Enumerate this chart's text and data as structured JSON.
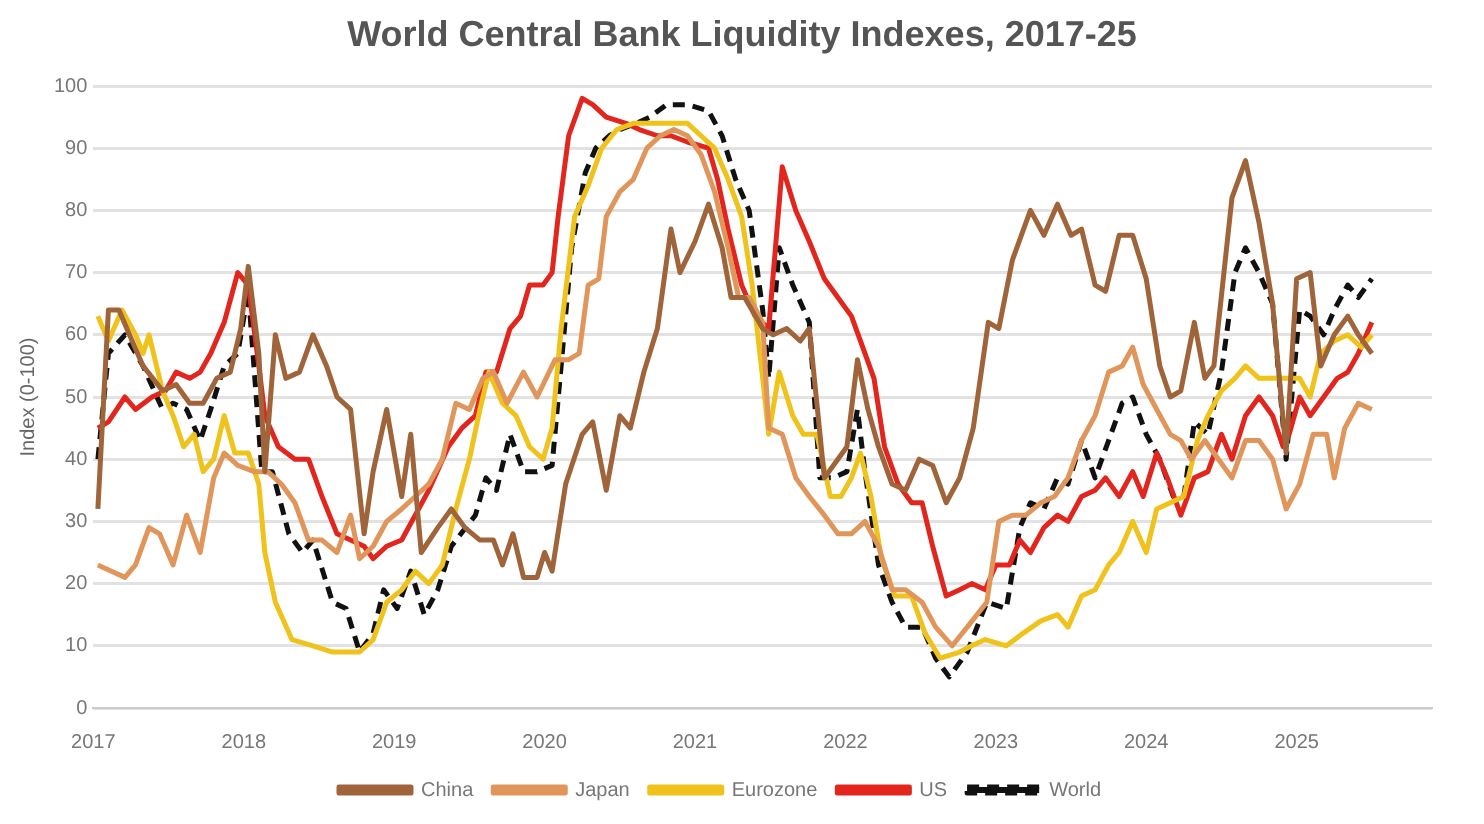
{
  "chart_data": {
    "type": "line",
    "title": "World Central Bank Liquidity Indexes, 2017-25",
    "ylabel": "Index (0-100)",
    "xlim": [
      2017,
      2025.9
    ],
    "xticks": [
      2017,
      2018,
      2019,
      2020,
      2021,
      2022,
      2023,
      2024,
      2025
    ],
    "ylim": [
      0,
      100
    ],
    "yticks": [
      0,
      10,
      20,
      30,
      40,
      50,
      60,
      70,
      80,
      90,
      100
    ],
    "grid": "y",
    "legend": "bottom",
    "series": [
      {
        "name": "China",
        "color": "#a0643a",
        "x": [
          2017.03,
          2017.1,
          2017.17,
          2017.24,
          2017.33,
          2017.46,
          2017.55,
          2017.64,
          2017.73,
          2017.82,
          2017.91,
          2017.98,
          2018.03,
          2018.1,
          2018.14,
          2018.21,
          2018.28,
          2018.37,
          2018.46,
          2018.55,
          2018.62,
          2018.71,
          2018.8,
          2018.86,
          2018.95,
          2019.05,
          2019.11,
          2019.18,
          2019.29,
          2019.38,
          2019.47,
          2019.57,
          2019.66,
          2019.72,
          2019.79,
          2019.86,
          2019.95,
          2020.0,
          2020.05,
          2020.14,
          2020.25,
          2020.32,
          2020.41,
          2020.5,
          2020.57,
          2020.66,
          2020.75,
          2020.84,
          2020.9,
          2021.0,
          2021.09,
          2021.18,
          2021.24,
          2021.33,
          2021.45,
          2021.52,
          2021.61,
          2021.7,
          2021.76,
          2021.86,
          2021.95,
          2022.01,
          2022.08,
          2022.15,
          2022.22,
          2022.31,
          2022.4,
          2022.49,
          2022.58,
          2022.67,
          2022.76,
          2022.85,
          2022.95,
          2023.02,
          2023.11,
          2023.23,
          2023.32,
          2023.41,
          2023.5,
          2023.57,
          2023.66,
          2023.73,
          2023.82,
          2023.91,
          2024.0,
          2024.09,
          2024.16,
          2024.23,
          2024.32,
          2024.39,
          2024.45,
          2024.57,
          2024.66,
          2024.75,
          2024.84,
          2024.93,
          2025.0,
          2025.09,
          2025.16,
          2025.25,
          2025.34,
          2025.41,
          2025.5
        ],
        "values": [
          32,
          64,
          64,
          60,
          55,
          51,
          52,
          49,
          49,
          53,
          54,
          61,
          71,
          57,
          38,
          60,
          53,
          54,
          60,
          55,
          50,
          48,
          28,
          38,
          48,
          34,
          44,
          25,
          29,
          32,
          29,
          27,
          27,
          23,
          28,
          21,
          21,
          25,
          22,
          36,
          44,
          46,
          35,
          47,
          45,
          54,
          61,
          77,
          70,
          75,
          81,
          74,
          66,
          66,
          61,
          60,
          61,
          59,
          61,
          37,
          40,
          42,
          56,
          48,
          42,
          36,
          35,
          40,
          39,
          33,
          37,
          45,
          62,
          61,
          72,
          80,
          76,
          81,
          76,
          77,
          68,
          67,
          76,
          76,
          69,
          55,
          50,
          51,
          62,
          53,
          55,
          82,
          88,
          78,
          65,
          41,
          69,
          70,
          55,
          60,
          63,
          60,
          57
        ]
      },
      {
        "name": "Japan",
        "color": "#e0965a",
        "x": [
          2017.03,
          2017.12,
          2017.21,
          2017.28,
          2017.37,
          2017.44,
          2017.53,
          2017.62,
          2017.71,
          2017.8,
          2017.87,
          2017.96,
          2018.07,
          2018.16,
          2018.25,
          2018.34,
          2018.43,
          2018.52,
          2018.62,
          2018.71,
          2018.77,
          2018.86,
          2018.95,
          2019.05,
          2019.14,
          2019.23,
          2019.32,
          2019.41,
          2019.5,
          2019.59,
          2019.66,
          2019.75,
          2019.86,
          2019.95,
          2020.07,
          2020.16,
          2020.23,
          2020.29,
          2020.36,
          2020.41,
          2020.5,
          2020.59,
          2020.68,
          2020.77,
          2020.86,
          2020.95,
          2021.04,
          2021.13,
          2021.22,
          2021.29,
          2021.36,
          2021.45,
          2021.49,
          2021.58,
          2021.67,
          2021.76,
          2021.86,
          2021.95,
          2022.04,
          2022.13,
          2022.22,
          2022.31,
          2022.4,
          2022.51,
          2022.6,
          2022.71,
          2022.81,
          2022.94,
          2023.02,
          2023.11,
          2023.2,
          2023.3,
          2023.39,
          2023.48,
          2023.57,
          2023.66,
          2023.75,
          2023.84,
          2023.91,
          2023.98,
          2024.07,
          2024.16,
          2024.23,
          2024.3,
          2024.39,
          2024.48,
          2024.57,
          2024.66,
          2024.75,
          2024.84,
          2024.93,
          2025.02,
          2025.11,
          2025.2,
          2025.25,
          2025.32,
          2025.41,
          2025.5
        ],
        "values": [
          23,
          22,
          21,
          23,
          29,
          28,
          23,
          31,
          25,
          37,
          41,
          39,
          38,
          38,
          36,
          33,
          27,
          27,
          25,
          31,
          24,
          26,
          30,
          32,
          34,
          36,
          40,
          49,
          48,
          53,
          54,
          49,
          54,
          50,
          56,
          56,
          57,
          68,
          69,
          79,
          83,
          85,
          90,
          92,
          93,
          92,
          89,
          83,
          74,
          66,
          66,
          62,
          45,
          44,
          37,
          34,
          31,
          28,
          28,
          30,
          26,
          19,
          19,
          17,
          13,
          10,
          13,
          17,
          30,
          31,
          31,
          33,
          34,
          37,
          43,
          47,
          54,
          55,
          58,
          52,
          48,
          44,
          43,
          40,
          43,
          40,
          37,
          43,
          43,
          40,
          32,
          36,
          44,
          44,
          37,
          45,
          49,
          48
        ]
      },
      {
        "name": "Eurozone",
        "color": "#efc21c",
        "x": [
          2017.03,
          2017.1,
          2017.19,
          2017.28,
          2017.33,
          2017.37,
          2017.46,
          2017.53,
          2017.6,
          2017.67,
          2017.73,
          2017.8,
          2017.87,
          2017.94,
          2018.03,
          2018.1,
          2018.14,
          2018.21,
          2018.32,
          2018.46,
          2018.59,
          2018.77,
          2018.86,
          2018.95,
          2019.05,
          2019.14,
          2019.23,
          2019.32,
          2019.41,
          2019.5,
          2019.57,
          2019.63,
          2019.72,
          2019.81,
          2019.9,
          2019.99,
          2020.05,
          2020.11,
          2020.2,
          2020.29,
          2020.38,
          2020.48,
          2020.59,
          2020.72,
          2020.86,
          2020.95,
          2021.04,
          2021.13,
          2021.22,
          2021.31,
          2021.38,
          2021.45,
          2021.49,
          2021.56,
          2021.65,
          2021.72,
          2021.81,
          2021.9,
          2021.97,
          2022.04,
          2022.1,
          2022.17,
          2022.24,
          2022.33,
          2022.44,
          2022.53,
          2022.63,
          2022.76,
          2022.84,
          2022.93,
          2023.07,
          2023.18,
          2023.3,
          2023.41,
          2023.48,
          2023.57,
          2023.66,
          2023.75,
          2023.82,
          2023.91,
          2024.0,
          2024.07,
          2024.16,
          2024.25,
          2024.34,
          2024.41,
          2024.5,
          2024.59,
          2024.66,
          2024.75,
          2024.84,
          2024.93,
          2025.02,
          2025.09,
          2025.16,
          2025.25,
          2025.34,
          2025.43,
          2025.5
        ],
        "values": [
          63,
          59,
          64,
          60,
          57,
          60,
          51,
          47,
          42,
          44,
          38,
          40,
          47,
          41,
          41,
          36,
          25,
          17,
          11,
          10,
          9,
          9,
          11,
          17,
          19,
          22,
          20,
          23,
          32,
          40,
          48,
          54,
          49,
          47,
          42,
          40,
          45,
          61,
          79,
          84,
          90,
          93,
          94,
          94,
          94,
          94,
          92,
          90,
          85,
          79,
          68,
          53,
          44,
          54,
          47,
          44,
          44,
          34,
          34,
          37,
          41,
          34,
          24,
          18,
          18,
          12,
          8,
          9,
          10,
          11,
          10,
          12,
          14,
          15,
          13,
          18,
          19,
          23,
          25,
          30,
          25,
          32,
          33,
          34,
          43,
          47,
          51,
          53,
          55,
          53,
          53,
          53,
          53,
          50,
          57,
          59,
          60,
          58,
          60
        ]
      },
      {
        "name": "US",
        "color": "#e2261e",
        "x": [
          2017.03,
          2017.1,
          2017.21,
          2017.28,
          2017.39,
          2017.48,
          2017.55,
          2017.64,
          2017.71,
          2017.78,
          2017.87,
          2017.96,
          2018.03,
          2018.1,
          2018.14,
          2018.23,
          2018.34,
          2018.43,
          2018.52,
          2018.62,
          2018.71,
          2018.8,
          2018.86,
          2018.95,
          2019.05,
          2019.14,
          2019.23,
          2019.36,
          2019.45,
          2019.54,
          2019.61,
          2019.68,
          2019.77,
          2019.84,
          2019.9,
          2019.99,
          2020.05,
          2020.09,
          2020.16,
          2020.25,
          2020.32,
          2020.41,
          2020.54,
          2020.63,
          2020.75,
          2020.84,
          2020.95,
          2021.09,
          2021.15,
          2021.22,
          2021.31,
          2021.4,
          2021.49,
          2021.58,
          2021.67,
          2021.76,
          2021.86,
          2021.95,
          2022.04,
          2022.13,
          2022.19,
          2022.26,
          2022.35,
          2022.44,
          2022.51,
          2022.58,
          2022.67,
          2022.76,
          2022.84,
          2022.93,
          2023.0,
          2023.09,
          2023.16,
          2023.23,
          2023.32,
          2023.41,
          2023.48,
          2023.57,
          2023.66,
          2023.73,
          2023.82,
          2023.91,
          2023.98,
          2024.07,
          2024.14,
          2024.23,
          2024.32,
          2024.41,
          2024.5,
          2024.57,
          2024.66,
          2024.75,
          2024.84,
          2024.91,
          2024.95,
          2025.02,
          2025.09,
          2025.18,
          2025.27,
          2025.34,
          2025.41,
          2025.5
        ],
        "values": [
          45,
          46,
          50,
          48,
          50,
          51,
          54,
          53,
          54,
          57,
          62,
          70,
          68,
          55,
          47,
          42,
          40,
          40,
          34,
          28,
          27,
          26,
          24,
          26,
          27,
          31,
          35,
          42,
          45,
          47,
          54,
          54,
          61,
          63,
          68,
          68,
          70,
          79,
          92,
          98,
          97,
          95,
          94,
          93,
          92,
          92,
          91,
          90,
          85,
          77,
          68,
          63,
          61,
          87,
          80,
          75,
          69,
          66,
          63,
          57,
          53,
          42,
          36,
          33,
          33,
          26,
          18,
          19,
          20,
          19,
          23,
          23,
          27,
          25,
          29,
          31,
          30,
          34,
          35,
          37,
          34,
          38,
          34,
          41,
          37,
          31,
          37,
          38,
          44,
          40,
          47,
          50,
          47,
          42,
          44,
          50,
          47,
          50,
          53,
          54,
          57,
          62
        ]
      },
      {
        "name": "World",
        "color": "#111111",
        "line_style": "dashed",
        "x": [
          2017.03,
          2017.1,
          2017.21,
          2017.33,
          2017.46,
          2017.53,
          2017.62,
          2017.71,
          2017.78,
          2017.87,
          2017.96,
          2018.03,
          2018.12,
          2018.19,
          2018.3,
          2018.39,
          2018.46,
          2018.59,
          2018.68,
          2018.77,
          2018.86,
          2018.93,
          2019.02,
          2019.11,
          2019.2,
          2019.29,
          2019.38,
          2019.54,
          2019.61,
          2019.68,
          2019.77,
          2019.86,
          2019.95,
          2020.05,
          2020.11,
          2020.18,
          2020.27,
          2020.34,
          2020.43,
          2020.5,
          2020.61,
          2020.7,
          2020.81,
          2020.95,
          2021.09,
          2021.18,
          2021.27,
          2021.36,
          2021.45,
          2021.49,
          2021.56,
          2021.65,
          2021.76,
          2021.83,
          2021.92,
          2022.01,
          2022.08,
          2022.13,
          2022.22,
          2022.31,
          2022.4,
          2022.51,
          2022.6,
          2022.69,
          2022.81,
          2022.94,
          2023.07,
          2023.16,
          2023.23,
          2023.32,
          2023.41,
          2023.48,
          2023.57,
          2023.66,
          2023.75,
          2023.84,
          2023.91,
          2024.0,
          2024.09,
          2024.18,
          2024.25,
          2024.32,
          2024.41,
          2024.5,
          2024.59,
          2024.66,
          2024.75,
          2024.84,
          2024.93,
          2025.02,
          2025.09,
          2025.18,
          2025.25,
          2025.34,
          2025.41,
          2025.5
        ],
        "values": [
          40,
          57,
          60,
          55,
          48,
          49,
          48,
          43,
          48,
          55,
          57,
          67,
          38,
          38,
          28,
          25,
          27,
          17,
          16,
          9,
          12,
          19,
          16,
          22,
          15,
          19,
          26,
          31,
          37,
          35,
          44,
          38,
          38,
          39,
          55,
          74,
          86,
          90,
          92,
          93,
          94,
          95,
          97,
          97,
          96,
          92,
          85,
          80,
          64,
          53,
          74,
          68,
          62,
          37,
          37,
          38,
          48,
          38,
          23,
          17,
          13,
          13,
          8,
          5,
          9,
          17,
          16,
          29,
          33,
          32,
          37,
          36,
          43,
          37,
          43,
          49,
          50,
          44,
          40,
          34,
          34,
          46,
          44,
          54,
          70,
          74,
          70,
          65,
          40,
          64,
          63,
          60,
          64,
          68,
          66,
          69
        ]
      }
    ]
  }
}
